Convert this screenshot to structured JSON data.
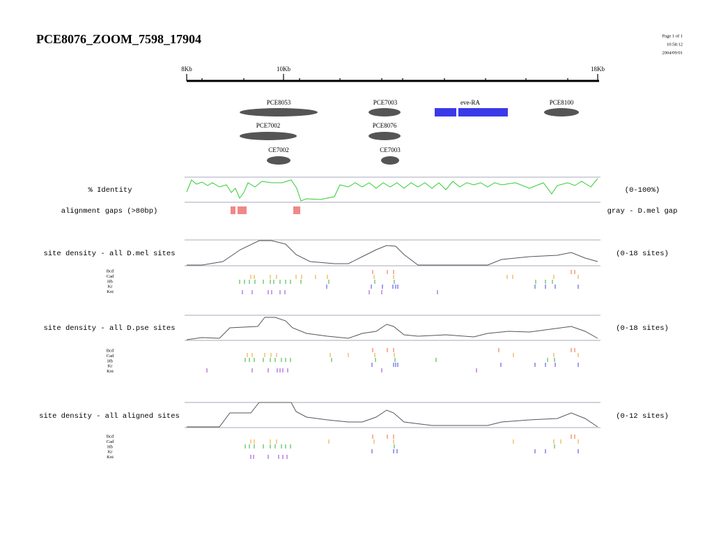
{
  "header": {
    "title": "PCE8076_ZOOM_7598_17904",
    "page": "Page 1 of 1",
    "time": "10:58:12",
    "date": "2004/09/01"
  },
  "ruler": {
    "labels": [
      "8Kb",
      "10Kb",
      "18Kb"
    ]
  },
  "features": [
    "PCE8053",
    "PCE7003",
    "eve-RA",
    "PCE8100",
    "PCE7002",
    "PCE8076",
    "CE7002",
    "CE7003"
  ],
  "identity": {
    "label": "% Identity",
    "range": "(0-100%)",
    "gaps_label": "alignment gaps (>80bp)",
    "gaps_note": "gray - D.mel gap"
  },
  "tracks": [
    {
      "label": "site density - all D.mel sites",
      "range": "(0-18 sites)",
      "factors": [
        "Bcd",
        "Cad",
        "Hb",
        "Kr",
        "Kni"
      ]
    },
    {
      "label": "site density - all D.pse sites",
      "range": "(0-18 sites)",
      "factors": [
        "Bcd",
        "Cad",
        "Hb",
        "Kr",
        "Kni"
      ]
    },
    {
      "label": "site density - all aligned sites",
      "range": "(0-12 sites)",
      "factors": [
        "Bcd",
        "Cad",
        "Hb",
        "Kr",
        "Kni"
      ]
    }
  ]
}
